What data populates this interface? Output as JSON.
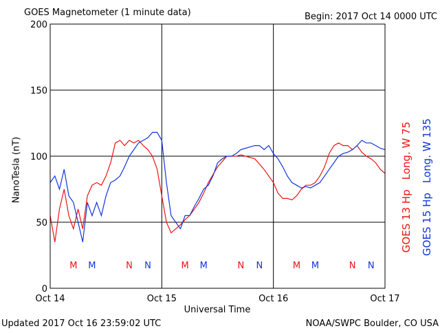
{
  "chart_data": {
    "type": "line",
    "title": "GOES Magnetometer (1 minute data)",
    "subtitle": "Begin:  2017 Oct 14 0000 UTC",
    "xlabel": "Universal Time",
    "ylabel": "NanoTesla (nT)",
    "footer_left": "Updated 2017 Oct 16 23:59:02 UTC",
    "footer_right": "NOAA/SWPC Boulder, CO USA",
    "xlim": [
      0,
      72
    ],
    "xticks": [
      {
        "value": 0,
        "label": "Oct 14"
      },
      {
        "value": 24,
        "label": "Oct 15"
      },
      {
        "value": 48,
        "label": "Oct 16"
      },
      {
        "value": 72,
        "label": "Oct 17"
      }
    ],
    "ylim": [
      0,
      200
    ],
    "yticks": [
      0,
      50,
      100,
      150,
      200
    ],
    "grid": true,
    "x": [
      0,
      1,
      2,
      3,
      4,
      5,
      6,
      7,
      8,
      9,
      10,
      11,
      12,
      13,
      14,
      15,
      16,
      17,
      18,
      19,
      20,
      21,
      22,
      23,
      24,
      25,
      26,
      27,
      28,
      29,
      30,
      31,
      32,
      33,
      34,
      35,
      36,
      37,
      38,
      39,
      40,
      41,
      42,
      43,
      44,
      45,
      46,
      47,
      48,
      49,
      50,
      51,
      52,
      53,
      54,
      55,
      56,
      57,
      58,
      59,
      60,
      61,
      62,
      63,
      64,
      65,
      66,
      67,
      68,
      69,
      70,
      71,
      72
    ],
    "series": [
      {
        "name": "GOES 13 Hp",
        "longitude": "Long. W 75",
        "color": "#ee1111",
        "values": [
          55,
          35,
          60,
          75,
          55,
          45,
          60,
          45,
          70,
          78,
          80,
          78,
          85,
          95,
          110,
          112,
          108,
          112,
          110,
          112,
          108,
          105,
          100,
          90,
          70,
          50,
          42,
          45,
          48,
          52,
          55,
          60,
          65,
          72,
          80,
          86,
          92,
          96,
          100,
          100,
          100,
          101,
          100,
          99,
          98,
          94,
          90,
          85,
          80,
          72,
          68,
          68,
          67,
          70,
          75,
          78,
          78,
          80,
          85,
          92,
          102,
          108,
          110,
          108,
          108,
          105,
          108,
          103,
          100,
          98,
          95,
          90,
          87
        ]
      },
      {
        "name": "GOES 15 Hp",
        "longitude": "Long. W 135",
        "color": "#1133dd",
        "values": [
          80,
          85,
          75,
          90,
          70,
          65,
          50,
          35,
          65,
          55,
          65,
          55,
          70,
          80,
          82,
          85,
          92,
          100,
          105,
          110,
          112,
          114,
          118,
          118,
          112,
          80,
          55,
          50,
          45,
          55,
          55,
          62,
          68,
          75,
          78,
          85,
          95,
          98,
          100,
          100,
          102,
          105,
          106,
          107,
          108,
          108,
          105,
          108,
          102,
          98,
          92,
          85,
          80,
          78,
          76,
          77,
          76,
          78,
          80,
          85,
          90,
          95,
          100,
          102,
          103,
          105,
          108,
          112,
          110,
          110,
          108,
          106,
          105
        ]
      }
    ],
    "markers": [
      {
        "text": "M",
        "x": 5,
        "series": 0
      },
      {
        "text": "M",
        "x": 9,
        "series": 1
      },
      {
        "text": "N",
        "x": 17,
        "series": 0
      },
      {
        "text": "N",
        "x": 21,
        "series": 1
      },
      {
        "text": "M",
        "x": 29,
        "series": 0
      },
      {
        "text": "M",
        "x": 33,
        "series": 1
      },
      {
        "text": "N",
        "x": 41,
        "series": 0
      },
      {
        "text": "N",
        "x": 45,
        "series": 1
      },
      {
        "text": "M",
        "x": 53,
        "series": 0
      },
      {
        "text": "M",
        "x": 57,
        "series": 1
      },
      {
        "text": "N",
        "x": 65,
        "series": 0
      },
      {
        "text": "N",
        "x": 69,
        "series": 1
      }
    ]
  }
}
